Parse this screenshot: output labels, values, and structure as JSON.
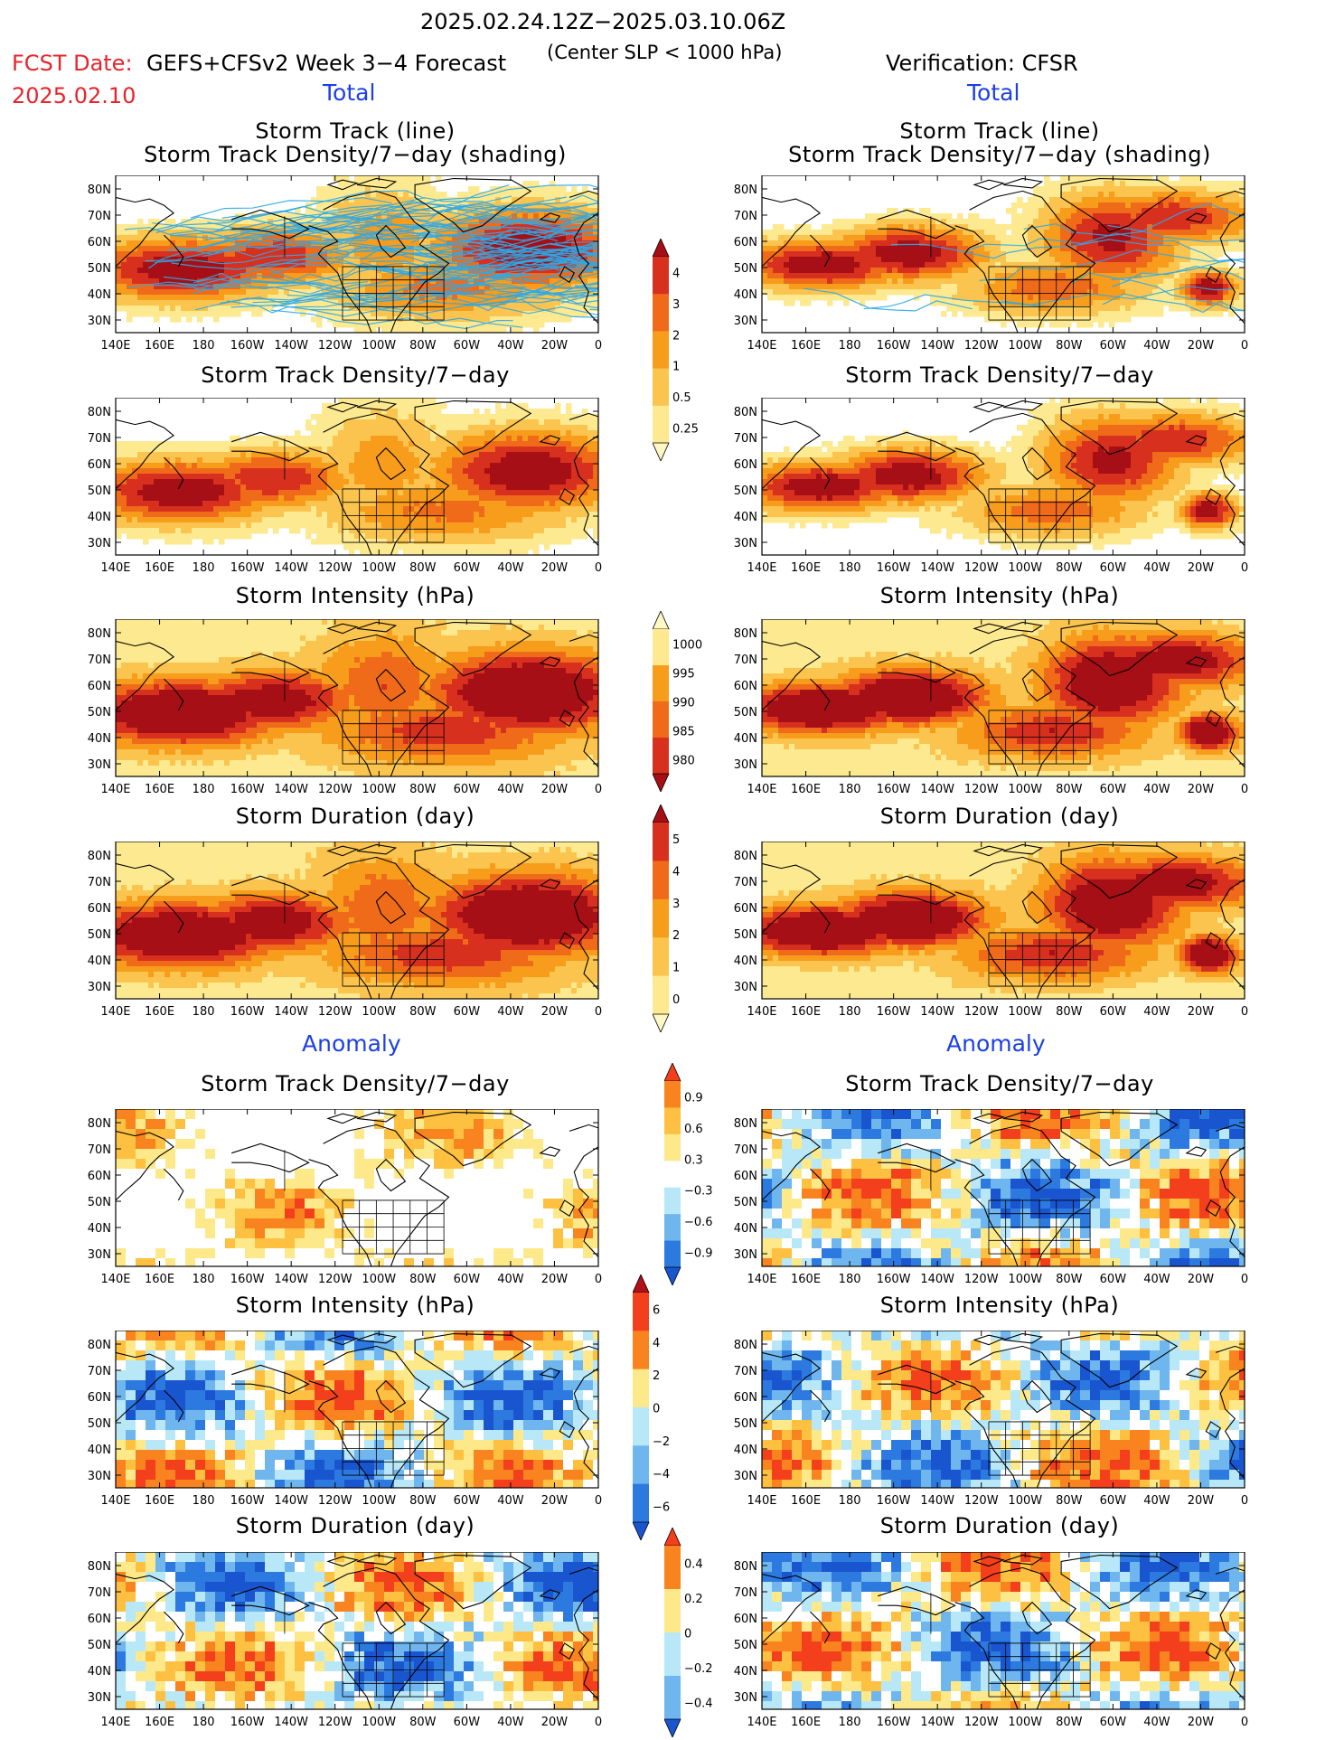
{
  "header": {
    "date_range": "2025.02.24.12Z−2025.03.10.06Z",
    "fcst_label": "FCST Date:",
    "fcst_date": "2025.02.10",
    "model_title": "GEFS+CFSv2 Week 3−4 Forecast",
    "criterion": "(Center SLP < 1000 hPa)",
    "verification": "Verification: CFSR"
  },
  "sections": {
    "total_left": "Total",
    "total_right": "Total",
    "anomaly_left": "Anomaly",
    "anomaly_right": "Anomaly"
  },
  "panel_titles": {
    "track_line": "Storm Track (line)",
    "track_shading": "Storm Track Density/7−day (shading)",
    "density": "Storm Track Density/7−day",
    "intensity": "Storm Intensity (hPa)",
    "duration": "Storm Duration (day)"
  },
  "axes": {
    "lat_labels": [
      "80N",
      "70N",
      "60N",
      "50N",
      "40N",
      "30N"
    ],
    "lon_labels": [
      "140E",
      "160E",
      "180",
      "160W",
      "140W",
      "120W",
      "100W",
      "80W",
      "60W",
      "40W",
      "20W",
      "0"
    ]
  },
  "colorbars": {
    "density_total": {
      "labels": [
        "4",
        "3",
        "2",
        "1",
        "0.5",
        "0.25"
      ],
      "colors": [
        "#a50f15",
        "#d7301f",
        "#ef6b1a",
        "#f89c1c",
        "#fbc44e",
        "#fde98f",
        "#fff8c4"
      ]
    },
    "intensity_total": {
      "labels": [
        "1000",
        "995",
        "990",
        "985",
        "980"
      ],
      "colors": [
        "#fff8c4",
        "#fde98f",
        "#f89c1c",
        "#ef6b1a",
        "#d7301f",
        "#a50f15"
      ]
    },
    "duration_total": {
      "labels": [
        "5",
        "4",
        "3",
        "2",
        "1",
        "0"
      ],
      "colors": [
        "#a50f15",
        "#d7301f",
        "#ef6b1a",
        "#f89c1c",
        "#fbc44e",
        "#fde98f",
        "#fff8c4"
      ]
    },
    "density_anom": {
      "labels": [
        "0.9",
        "0.6",
        "0.3",
        "−0.3",
        "−0.6",
        "−0.9"
      ],
      "colors": [
        "#f43f1c",
        "#f9831f",
        "#fdc040",
        "#fde98a",
        "#ffffff",
        "#b8e8f8",
        "#6fb5ee",
        "#2c7ae0",
        "#1a55d0"
      ]
    },
    "intensity_anom": {
      "labels": [
        "6",
        "4",
        "2",
        "0",
        "−2",
        "−4",
        "−6"
      ],
      "colors": [
        "#b01018",
        "#f43f1c",
        "#f9831f",
        "#fde98a",
        "#b8e8f8",
        "#6fb5ee",
        "#2c7ae0",
        "#1a55d0"
      ]
    },
    "duration_anom": {
      "labels": [
        "0.4",
        "0.2",
        "0",
        "−0.2",
        "−0.4"
      ],
      "colors": [
        "#f43f1c",
        "#f9831f",
        "#fde98a",
        "#b8e8f8",
        "#6fb5ee",
        "#1a55d0"
      ]
    }
  },
  "panels": [
    {
      "id": "fc-track",
      "title_key": "track_line",
      "type": "track",
      "side": "forecast"
    },
    {
      "id": "ob-track",
      "title_key": "track_line",
      "type": "track",
      "side": "observed"
    },
    {
      "id": "fc-density",
      "title_key": "density",
      "type": "total",
      "side": "forecast"
    },
    {
      "id": "ob-density",
      "title_key": "density",
      "type": "total",
      "side": "observed"
    },
    {
      "id": "fc-intensity",
      "title_key": "intensity",
      "type": "total",
      "side": "forecast"
    },
    {
      "id": "ob-intensity",
      "title_key": "intensity",
      "type": "total",
      "side": "observed"
    },
    {
      "id": "fc-duration",
      "title_key": "duration",
      "type": "total",
      "side": "forecast"
    },
    {
      "id": "ob-duration",
      "title_key": "duration",
      "type": "total",
      "side": "observed"
    },
    {
      "id": "fc-density-anom",
      "title_key": "density",
      "type": "anom",
      "side": "forecast"
    },
    {
      "id": "ob-density-anom",
      "title_key": "density",
      "type": "anom",
      "side": "observed"
    },
    {
      "id": "fc-intensity-anom",
      "title_key": "intensity",
      "type": "anom",
      "side": "forecast"
    },
    {
      "id": "ob-intensity-anom",
      "title_key": "intensity",
      "type": "anom",
      "side": "observed"
    },
    {
      "id": "fc-duration-anom",
      "title_key": "duration",
      "type": "anom",
      "side": "forecast"
    },
    {
      "id": "ob-duration-anom",
      "title_key": "duration",
      "type": "anom",
      "side": "observed"
    }
  ]
}
